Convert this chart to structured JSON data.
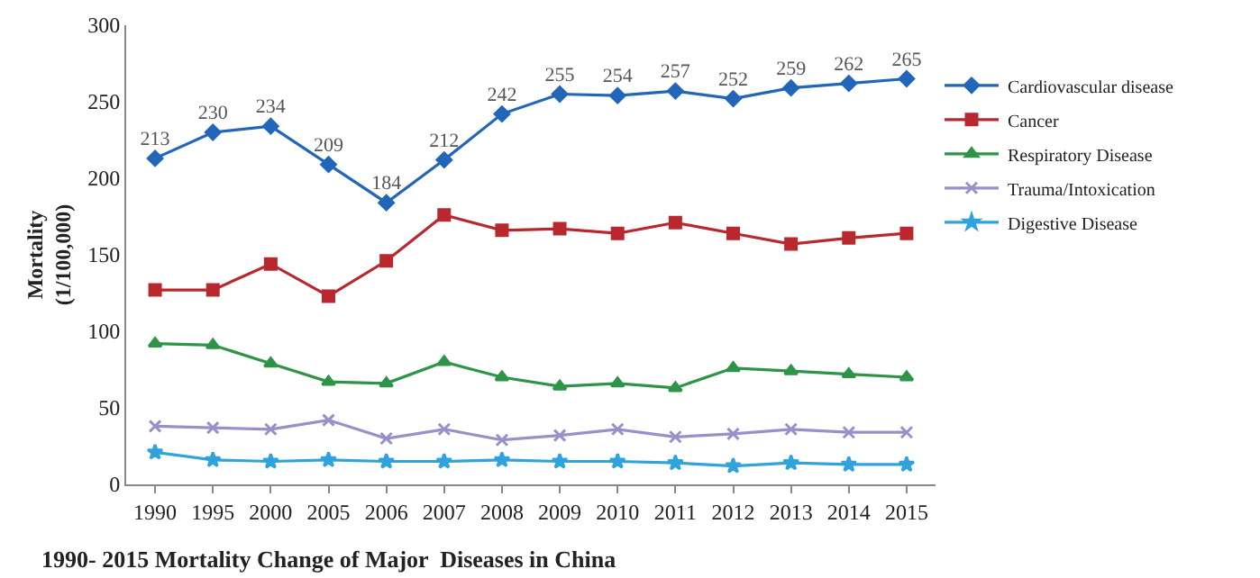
{
  "chart_data": {
    "type": "line",
    "title": "1990- 2015 Mortality Change of Major  Diseases in China",
    "ylabel": "Mortality\n(1/100,000)",
    "categories": [
      "1990",
      "1995",
      "2000",
      "2005",
      "2006",
      "2007",
      "2008",
      "2009",
      "2010",
      "2011",
      "2012",
      "2013",
      "2014",
      "2015"
    ],
    "ylim": [
      0,
      300
    ],
    "yticks": [
      0,
      50,
      100,
      150,
      200,
      250,
      300
    ],
    "grid": false,
    "legend": "right",
    "series": [
      {
        "name": "Cardiovascular disease",
        "color": "#2166b8",
        "marker": "diamond",
        "values": [
          213,
          230,
          234,
          209,
          184,
          212,
          242,
          255,
          254,
          257,
          252,
          259,
          262,
          265
        ],
        "value_labels": [
          "213",
          "230",
          "234",
          "209",
          "184",
          "212",
          "242",
          "255",
          "254",
          "257",
          "252",
          "259",
          "262",
          "265"
        ]
      },
      {
        "name": "Cancer",
        "color": "#b8282e",
        "marker": "square",
        "values": [
          127,
          127,
          144,
          123,
          146,
          176,
          166,
          167,
          164,
          171,
          164,
          157,
          161,
          164
        ]
      },
      {
        "name": "Respiratory Disease",
        "color": "#2e9447",
        "marker": "triangle",
        "values": [
          92,
          91,
          79,
          67,
          66,
          80,
          70,
          64,
          66,
          63,
          76,
          74,
          72,
          70
        ]
      },
      {
        "name": "Trauma/Intoxication",
        "color": "#9b8fc8",
        "marker": "cross",
        "values": [
          38,
          37,
          36,
          42,
          30,
          36,
          29,
          32,
          36,
          31,
          33,
          36,
          34,
          34
        ]
      },
      {
        "name": "Digestive Disease",
        "color": "#30a3dc",
        "marker": "star",
        "values": [
          21,
          16,
          15,
          16,
          15,
          15,
          16,
          15,
          15,
          14,
          12,
          14,
          13,
          13
        ]
      }
    ]
  }
}
